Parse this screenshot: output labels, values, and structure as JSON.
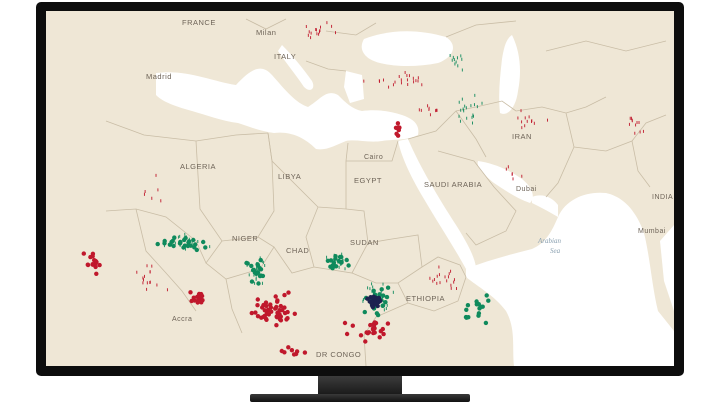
{
  "map": {
    "colors": {
      "land": "#efe7d6",
      "water": "#ffffff",
      "border": "#c9bda6",
      "red_marker": "#c0182c",
      "green_marker": "#0f8a5c",
      "navy_marker": "#1d2350"
    },
    "labels": {
      "france": "FRANCE",
      "milan": "Milan",
      "italy": "ITALY",
      "madrid": "Madrid",
      "algeria": "ALGERIA",
      "libya": "LIBYA",
      "egypt": "EGYPT",
      "cairo": "Cairo",
      "saudi": "SAUDI ARABIA",
      "dubai": "Dubai",
      "iran": "IRAN",
      "india": "INDIA",
      "mumbai": "Mumbai",
      "arabian_sea_1": "Arabian",
      "arabian_sea_2": "Sea",
      "niger": "NIGER",
      "chad": "CHAD",
      "sudan": "SUDAN",
      "ethiopia": "ETHIOPIA",
      "accra": "Accra",
      "dr_congo": "DR CONGO"
    },
    "marker_icons": [
      "pin-icon",
      "triangle-icon",
      "house-icon",
      "drop-icon"
    ]
  }
}
